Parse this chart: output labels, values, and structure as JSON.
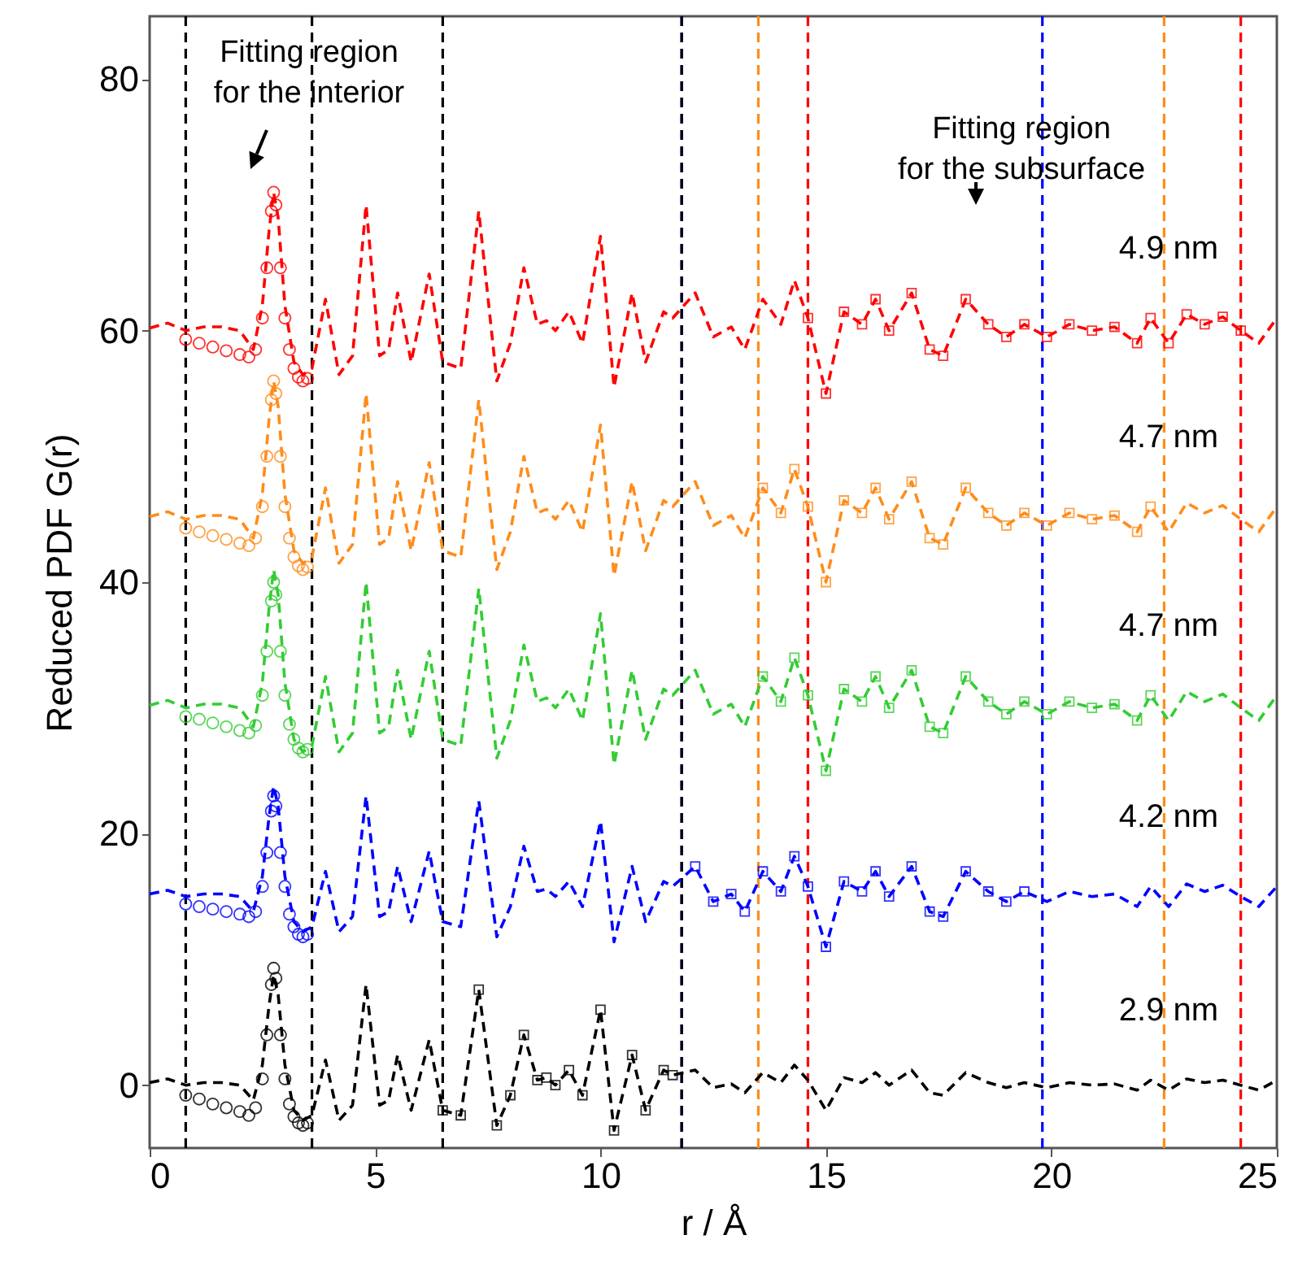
{
  "chart_data": {
    "type": "line",
    "xlabel": "r / Å",
    "ylabel": "Reduced PDF G(r)",
    "xlim": [
      0,
      25
    ],
    "ylim": [
      -5,
      85
    ],
    "xticks": [
      0,
      5,
      10,
      15,
      20,
      25
    ],
    "yticks": [
      0,
      20,
      40,
      60,
      80
    ],
    "line_style": "dashed",
    "x": [
      0,
      0.4,
      0.8,
      1.2,
      1.6,
      2.0,
      2.3,
      2.5,
      2.65,
      2.75,
      2.85,
      3.0,
      3.2,
      3.4,
      3.6,
      3.9,
      4.2,
      4.5,
      4.8,
      5.1,
      5.3,
      5.5,
      5.8,
      6.2,
      6.5,
      6.9,
      7.3,
      7.7,
      8.0,
      8.3,
      8.6,
      8.8,
      9.0,
      9.3,
      9.6,
      10.0,
      10.3,
      10.7,
      11.0,
      11.4,
      11.6,
      12.1,
      12.5,
      12.9,
      13.2,
      13.6,
      14.0,
      14.3,
      14.6,
      15.0,
      15.4,
      15.8,
      16.1,
      16.4,
      16.9,
      17.3,
      17.6,
      18.1,
      18.6,
      19.0,
      19.4,
      19.9,
      20.4,
      20.9,
      21.4,
      21.9,
      22.2,
      22.6,
      23.0,
      23.4,
      23.8,
      24.2,
      24.6,
      25.0
    ],
    "series": [
      {
        "name": "4.9 nm",
        "type": "line",
        "color": "#ff0000",
        "values": [
          60.2,
          60.6,
          60,
          60.3,
          60.3,
          60,
          58.5,
          62,
          68,
          71,
          69,
          62,
          57.5,
          56.5,
          57,
          62.5,
          56.5,
          58,
          70,
          58,
          58.5,
          63,
          57.5,
          64.5,
          57.5,
          57,
          69.5,
          56,
          59,
          65,
          60.5,
          60.8,
          60,
          61.5,
          59,
          67.5,
          55.5,
          63,
          57.5,
          61.5,
          61,
          63,
          59.5,
          60.3,
          58.5,
          62.5,
          60.5,
          64,
          61,
          55,
          61.5,
          60.5,
          62.5,
          60,
          63,
          58.5,
          58,
          62.5,
          60.5,
          59.5,
          60.5,
          59.5,
          60.5,
          60,
          60.3,
          59,
          61,
          59,
          61.3,
          60.5,
          61.1,
          60,
          59,
          61
        ]
      },
      {
        "type": "scatter",
        "marker": "circle",
        "color": "#ff0000",
        "x": [
          0.8,
          1.1,
          1.4,
          1.7,
          2.0,
          2.2,
          2.35,
          2.5,
          2.6,
          2.7,
          2.75,
          2.8,
          2.9,
          3.0,
          3.1,
          3.2,
          3.3,
          3.4,
          3.5
        ],
        "values": [
          59.3,
          59.0,
          58.7,
          58.4,
          58.1,
          57.9,
          58.5,
          61,
          65,
          69.5,
          71,
          70,
          65,
          61,
          58.5,
          57,
          56.3,
          56,
          56.2
        ]
      },
      {
        "type": "scatter",
        "marker": "square",
        "color": "#ff0000",
        "x": [
          14.6,
          15.0,
          15.4,
          15.8,
          16.1,
          16.4,
          16.9,
          17.3,
          17.6,
          18.1,
          18.6,
          19.0,
          19.4,
          19.9,
          20.4,
          20.9,
          21.4,
          21.9,
          22.2,
          22.6,
          23.0,
          23.4,
          23.8,
          24.2
        ],
        "values": [
          61,
          55,
          61.5,
          60.5,
          62.5,
          60,
          63,
          58.5,
          58,
          62.5,
          60.5,
          59.5,
          60.5,
          59.5,
          60.5,
          60,
          60.3,
          59,
          61,
          59,
          61.3,
          60.5,
          61.1,
          60
        ]
      },
      {
        "name": "4.7 nm",
        "type": "line",
        "color": "#ff8c1a",
        "values": [
          45.2,
          45.6,
          45,
          45.3,
          45.3,
          45,
          43.5,
          47,
          53,
          56,
          54,
          47,
          42.5,
          41.5,
          42,
          47.5,
          41.5,
          43,
          55,
          43,
          43.5,
          48,
          42.5,
          49.5,
          42.5,
          42,
          54.5,
          41,
          44,
          50,
          45.5,
          45.8,
          45,
          46.5,
          44,
          52.5,
          40.5,
          48,
          42.5,
          46.5,
          46,
          48,
          44.5,
          45.3,
          43.5,
          47.5,
          45.5,
          49,
          46,
          40,
          46.5,
          45.5,
          47.5,
          45,
          48,
          43.5,
          43,
          47.5,
          45.5,
          44.5,
          45.5,
          44.5,
          45.5,
          45,
          45.3,
          44,
          46,
          44,
          46.3,
          45.5,
          46.1,
          45,
          44,
          46
        ]
      },
      {
        "type": "scatter",
        "marker": "circle",
        "color": "#ff8c1a",
        "x": [
          0.8,
          1.1,
          1.4,
          1.7,
          2.0,
          2.2,
          2.35,
          2.5,
          2.6,
          2.7,
          2.75,
          2.8,
          2.9,
          3.0,
          3.1,
          3.2,
          3.3,
          3.4,
          3.5
        ],
        "values": [
          44.3,
          44.0,
          43.7,
          43.4,
          43.1,
          42.9,
          43.5,
          46,
          50,
          54.5,
          56,
          55,
          50,
          46,
          43.5,
          42,
          41.3,
          41,
          41.2
        ]
      },
      {
        "type": "scatter",
        "marker": "square",
        "color": "#ff8c1a",
        "x": [
          13.6,
          14.0,
          14.3,
          14.6,
          15.0,
          15.4,
          15.8,
          16.1,
          16.4,
          16.9,
          17.3,
          17.6,
          18.1,
          18.6,
          19.0,
          19.4,
          19.9,
          20.4,
          20.9,
          21.4,
          21.9,
          22.2
        ],
        "values": [
          47.5,
          45.5,
          49,
          46,
          40,
          46.5,
          45.5,
          47.5,
          45,
          48,
          43.5,
          43,
          47.5,
          45.5,
          44.5,
          45.5,
          44.5,
          45.5,
          45,
          45.3,
          44,
          46
        ]
      },
      {
        "name": "4.7 nm",
        "type": "line",
        "color": "#33cc33",
        "values": [
          30.2,
          30.6,
          30,
          30.3,
          30.3,
          30,
          28.5,
          32,
          38,
          41,
          39,
          32,
          27.5,
          26.5,
          27,
          32.5,
          26.5,
          28,
          40,
          28,
          28.5,
          33,
          27.5,
          34.5,
          27.5,
          27,
          39.5,
          26,
          29,
          35,
          30.5,
          30.8,
          30,
          31.5,
          29,
          37.5,
          25.5,
          33,
          27.5,
          31.5,
          31,
          33,
          29.5,
          30.3,
          28.5,
          32.5,
          30.5,
          34,
          31,
          25,
          31.5,
          30.5,
          32.5,
          30,
          33,
          28.5,
          28,
          32.5,
          30.5,
          29.5,
          30.5,
          29.5,
          30.5,
          30,
          30.3,
          29,
          31,
          29,
          31.3,
          30.5,
          31.1,
          30,
          29,
          31
        ]
      },
      {
        "type": "scatter",
        "marker": "circle",
        "color": "#33cc33",
        "x": [
          0.8,
          1.1,
          1.4,
          1.7,
          2.0,
          2.2,
          2.35,
          2.5,
          2.6,
          2.7,
          2.75,
          2.8,
          2.9,
          3.0,
          3.1,
          3.2,
          3.3,
          3.4,
          3.5
        ],
        "values": [
          29.3,
          29.1,
          28.8,
          28.5,
          28.2,
          28,
          28.6,
          31,
          34.5,
          38.5,
          40,
          39,
          34.5,
          31,
          28.7,
          27.5,
          26.8,
          26.5,
          26.7
        ]
      },
      {
        "type": "scatter",
        "marker": "square",
        "color": "#33cc33",
        "x": [
          13.6,
          14.0,
          14.3,
          14.6,
          15.0,
          15.4,
          15.8,
          16.1,
          16.4,
          16.9,
          17.3,
          17.6,
          18.1,
          18.6,
          19.0,
          19.4,
          19.9,
          20.4,
          20.9,
          21.4,
          21.9,
          22.2
        ],
        "values": [
          32.5,
          30.5,
          34,
          31,
          25,
          31.5,
          30.5,
          32.5,
          30,
          33,
          28.5,
          28,
          32.5,
          30.5,
          29.5,
          30.5,
          29.5,
          30.5,
          30,
          30.3,
          29,
          31
        ]
      },
      {
        "name": "4.2 nm",
        "type": "line",
        "color": "#0000ff",
        "values": [
          15.2,
          15.5,
          15,
          15.2,
          15.2,
          15,
          13.8,
          16.6,
          21.4,
          23.8,
          22.2,
          16.6,
          13,
          12.2,
          12.6,
          17,
          12.2,
          13.4,
          23,
          13.4,
          13.8,
          17.4,
          13,
          18.6,
          13,
          12.6,
          22.6,
          11.8,
          14.2,
          19,
          15.4,
          15.6,
          15,
          16.2,
          14.2,
          21,
          11.4,
          17.4,
          13,
          16.2,
          15.8,
          17.4,
          14.6,
          15.2,
          13.8,
          17,
          15.4,
          18.2,
          15.8,
          11,
          16.2,
          15.4,
          17,
          15,
          17.4,
          13.8,
          13.4,
          17,
          15.4,
          14.6,
          15.4,
          14.6,
          15.4,
          15,
          15.2,
          14.2,
          15.8,
          14.2,
          16,
          15.4,
          15.9,
          15,
          14.2,
          15.8
        ]
      },
      {
        "type": "scatter",
        "marker": "circle",
        "color": "#0000ff",
        "x": [
          0.8,
          1.1,
          1.4,
          1.7,
          2.0,
          2.2,
          2.35,
          2.5,
          2.6,
          2.7,
          2.75,
          2.8,
          2.9,
          3.0,
          3.1,
          3.2,
          3.3,
          3.4,
          3.5
        ],
        "values": [
          14.4,
          14.2,
          14,
          13.8,
          13.6,
          13.4,
          13.8,
          15.8,
          18.5,
          21.8,
          23,
          22.2,
          18.5,
          15.8,
          13.6,
          12.6,
          12,
          11.8,
          12
        ]
      },
      {
        "type": "scatter",
        "marker": "square",
        "color": "#0000ff",
        "x": [
          12.1,
          12.5,
          12.9,
          13.2,
          13.6,
          14.0,
          14.3,
          14.6,
          15.0,
          15.4,
          15.8,
          16.1,
          16.4,
          16.9,
          17.3,
          17.6,
          18.1,
          18.6,
          19.0,
          19.4
        ],
        "values": [
          17.4,
          14.6,
          15.2,
          13.8,
          17,
          15.4,
          18.2,
          15.8,
          11,
          16.2,
          15.4,
          17,
          15,
          17.4,
          13.8,
          13.4,
          17,
          15.4,
          14.6,
          15.4
        ]
      },
      {
        "name": "2.9 nm",
        "type": "line",
        "color": "#000000",
        "values": [
          0.2,
          0.5,
          0,
          0.2,
          0.2,
          0,
          -1.2,
          1.6,
          6.4,
          8.8,
          7.2,
          1.6,
          -2,
          -2.8,
          -2.4,
          2,
          -2.8,
          -1.6,
          8,
          -1.6,
          -1.2,
          2.4,
          -2,
          3.6,
          -2,
          -2.4,
          7.6,
          -3.2,
          -0.8,
          4,
          0.4,
          0.6,
          0,
          1.2,
          -0.8,
          6,
          -3.6,
          2.4,
          -2,
          1.2,
          0.8,
          1.2,
          -0.2,
          0.1,
          -0.6,
          1,
          0.2,
          1.6,
          0.4,
          -2,
          0.6,
          0.2,
          1,
          0,
          1.2,
          -0.6,
          -0.8,
          1,
          0.2,
          -0.2,
          0.2,
          -0.2,
          0.2,
          0,
          0.1,
          -0.4,
          0.4,
          -0.4,
          0.5,
          0.2,
          0.4,
          0,
          -0.4,
          0.4
        ]
      },
      {
        "type": "scatter",
        "marker": "circle",
        "color": "#000000",
        "x": [
          0.8,
          1.1,
          1.4,
          1.7,
          2.0,
          2.2,
          2.35,
          2.5,
          2.6,
          2.7,
          2.75,
          2.8,
          2.9,
          3.0,
          3.1,
          3.2,
          3.3,
          3.4,
          3.5
        ],
        "values": [
          -0.8,
          -1.1,
          -1.5,
          -1.8,
          -2.1,
          -2.4,
          -1.8,
          0.5,
          4,
          8,
          9.3,
          8.5,
          4,
          0.5,
          -1.5,
          -2.5,
          -3,
          -3.2,
          -3
        ]
      },
      {
        "type": "scatter",
        "marker": "square",
        "color": "#000000",
        "x": [
          6.5,
          6.9,
          7.3,
          7.7,
          8.0,
          8.3,
          8.6,
          8.8,
          9.0,
          9.3,
          9.6,
          10.0,
          10.3,
          10.7,
          11.0,
          11.4,
          11.6
        ],
        "values": [
          -2,
          -2.4,
          7.6,
          -3.2,
          -0.8,
          4,
          0.4,
          0.6,
          0,
          1.2,
          -0.8,
          6,
          -3.6,
          2.4,
          -2,
          1.2,
          0.8
        ]
      }
    ],
    "ref_lines": [
      {
        "axis": "x",
        "value": 0.8,
        "color": "#000000",
        "line_style": "dashed"
      },
      {
        "axis": "x",
        "value": 3.6,
        "color": "#000000",
        "line_style": "dashed"
      },
      {
        "axis": "x",
        "value": 14.6,
        "color": "#ff0000",
        "line_style": "dashed"
      },
      {
        "axis": "x",
        "value": 24.2,
        "color": "#ff0000",
        "line_style": "dashed"
      },
      {
        "axis": "x",
        "value": 13.5,
        "color": "#ff8c1a",
        "line_style": "dashed"
      },
      {
        "axis": "x",
        "value": 22.5,
        "color": "#ff8c1a",
        "line_style": "dashed"
      },
      {
        "axis": "x",
        "value": 11.8,
        "color": "#0000ff",
        "line_style": "dashed"
      },
      {
        "axis": "x",
        "value": 19.8,
        "color": "#0000ff",
        "line_style": "dashed"
      },
      {
        "axis": "x",
        "value": 6.5,
        "color": "#000000",
        "line_style": "dashed"
      },
      {
        "axis": "x",
        "value": 11.8,
        "color": "#000000",
        "line_style": "dashed"
      }
    ],
    "annotations": [
      "Fitting region\nfor the interior",
      "Fitting region\nfor the subsurface"
    ]
  }
}
